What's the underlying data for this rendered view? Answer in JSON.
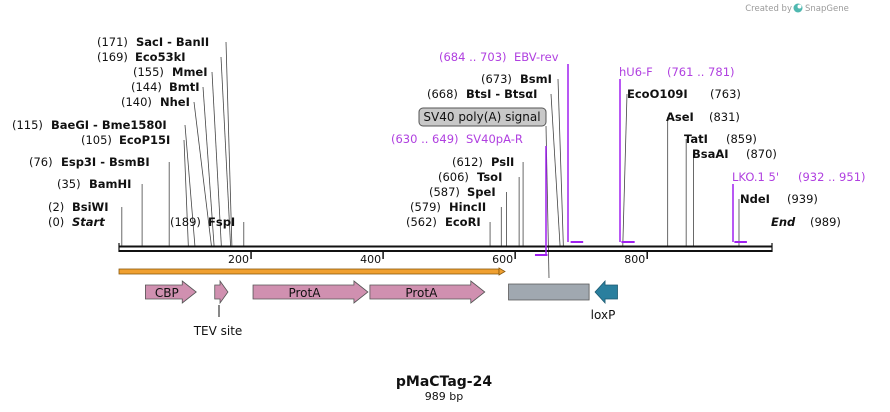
{
  "title": "pMaCTag-24",
  "length_label": "989 bp",
  "brand": {
    "created_by": "Created by",
    "name": "SnapGene"
  },
  "colors": {
    "primer": "#a020f0",
    "primer_text": "#b040e0",
    "feature_pink": "#d090b0",
    "feature_gray": "#a0a8b0",
    "loxp_teal": "#2a7f9e",
    "orf_orange": "#f0a030"
  },
  "ticks": [
    {
      "label": "200",
      "bp": 200
    },
    {
      "label": "400",
      "bp": 400
    },
    {
      "label": "600",
      "bp": 600
    },
    {
      "label": "800",
      "bp": 800
    }
  ],
  "sites": [
    {
      "pos": "(0)",
      "name": "Start",
      "bp": 0,
      "style": "italic"
    },
    {
      "pos": "(2)",
      "name": "BsiWI",
      "bp": 2
    },
    {
      "pos": "(35)",
      "name": "BamHI",
      "bp": 35
    },
    {
      "pos": "(76)",
      "name": "Esp3I  -  BsmBI",
      "bp": 76
    },
    {
      "pos": "(105)",
      "name": "EcoP15I",
      "bp": 105
    },
    {
      "pos": "(115)",
      "name": "BaeGI   -  Bme1580I",
      "bp": 115
    },
    {
      "pos": "(140)",
      "name": "NheI",
      "bp": 140
    },
    {
      "pos": "(144)",
      "name": "BmtI",
      "bp": 144
    },
    {
      "pos": "(155)",
      "name": "MmeI",
      "bp": 155
    },
    {
      "pos": "(169)",
      "name": "Eco53kI",
      "bp": 169
    },
    {
      "pos": "(171)",
      "name": "SacI   -  BanII",
      "bp": 171
    },
    {
      "pos": "(189)",
      "name": "FspI",
      "bp": 189
    },
    {
      "pos": "(562)",
      "name": "EcoRI",
      "bp": 562
    },
    {
      "pos": "(579)",
      "name": "HincII",
      "bp": 579
    },
    {
      "pos": "(587)",
      "name": "SpeI",
      "bp": 587
    },
    {
      "pos": "(606)",
      "name": "TsoI",
      "bp": 606
    },
    {
      "pos": "(612)",
      "name": "PslI",
      "bp": 612
    },
    {
      "pos": "(668)",
      "name": "BtsI  -  BtsαI",
      "bp": 668
    },
    {
      "pos": "(673)",
      "name": "BsmI",
      "bp": 673
    },
    {
      "pos": "(763)",
      "name": "EcoO109I",
      "bp": 763
    },
    {
      "pos": "(831)",
      "name": "AseI",
      "bp": 831
    },
    {
      "pos": "(859)",
      "name": "TatI",
      "bp": 859
    },
    {
      "pos": "(870)",
      "name": "BsaAI",
      "bp": 870
    },
    {
      "pos": "(939)",
      "name": "NdeI",
      "bp": 939
    },
    {
      "pos": "(989)",
      "name": "End",
      "bp": 989,
      "style": "italic"
    }
  ],
  "primers": [
    {
      "name": "EBV-rev",
      "range": "(684 .. 703)",
      "start": 684,
      "end": 703
    },
    {
      "name": "hU6-F",
      "range": "(761 .. 781)",
      "start": 761,
      "end": 781
    },
    {
      "name": "SV40pA-R",
      "range": "(630 .. 649)",
      "start": 630,
      "end": 649
    },
    {
      "name": "LKO.1 5'",
      "range": "(932 .. 951)",
      "start": 932,
      "end": 951
    }
  ],
  "callout": {
    "label": "SV40 poly(A) signal"
  },
  "features": [
    {
      "name": "CBP",
      "label": "CBP",
      "start": 40,
      "end": 117,
      "kind": "arrow-right"
    },
    {
      "name": "TEV site",
      "label": "TEV site",
      "start": 145,
      "end": 165,
      "kind": "arrow-right"
    },
    {
      "name": "ProtA",
      "label": "ProtA",
      "start": 203,
      "end": 377,
      "kind": "arrow-right"
    },
    {
      "name": "ProtA",
      "label": "ProtA",
      "start": 380,
      "end": 554,
      "kind": "arrow-right"
    },
    {
      "name": "SV40 poly(A) signal",
      "label": "",
      "start": 590,
      "end": 712,
      "kind": "box"
    },
    {
      "name": "loxP",
      "label": "loxP",
      "start": 721,
      "end": 755,
      "kind": "arrow-left"
    }
  ]
}
